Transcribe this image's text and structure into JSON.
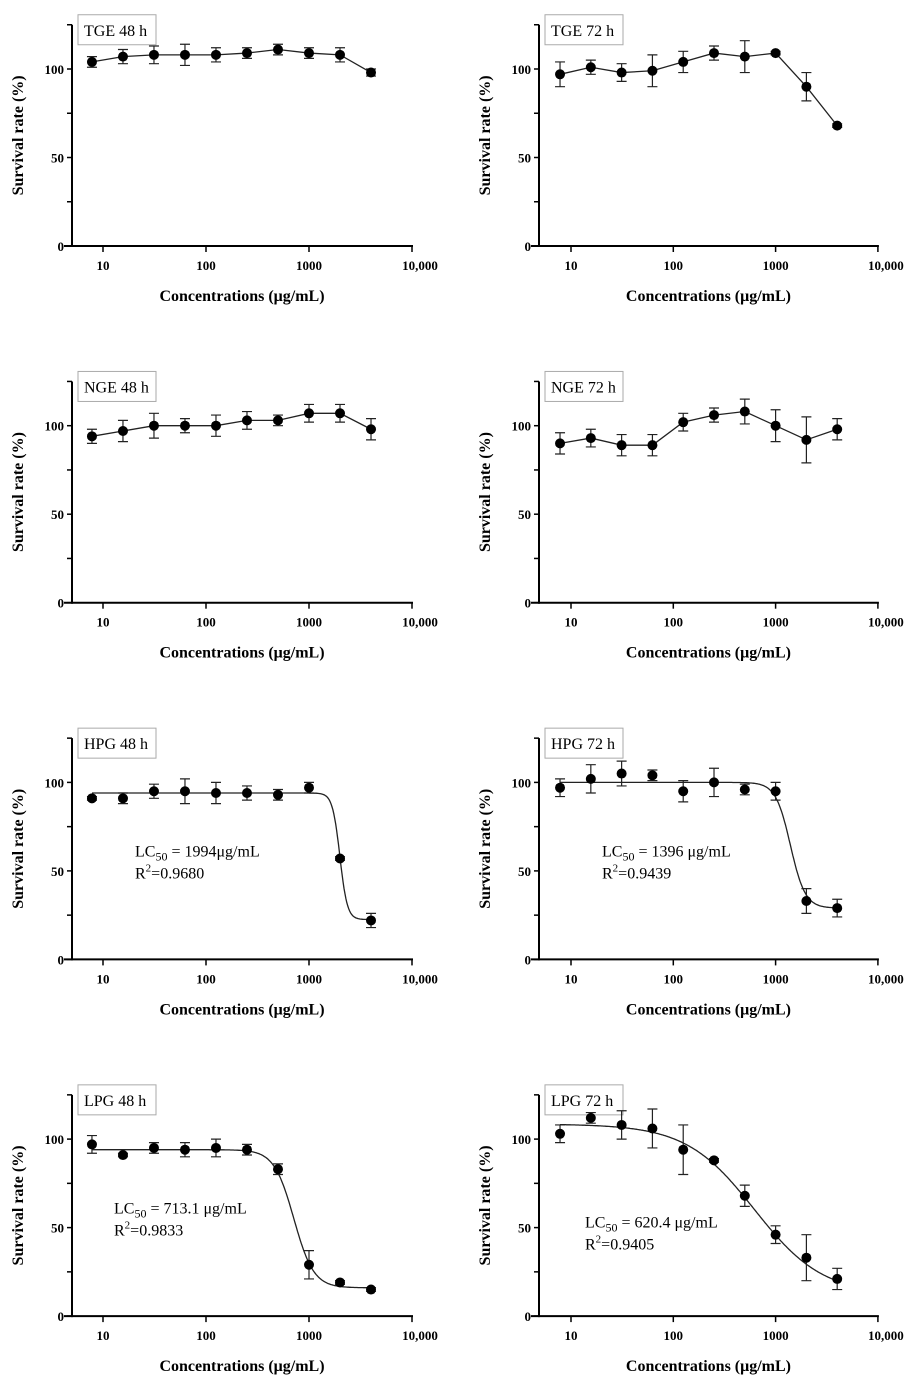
{
  "chart_data": [
    {
      "type": "line",
      "title": "TGE 48 h",
      "x": [
        7.8125,
        15.625,
        31.25,
        62.5,
        125,
        250,
        500,
        1000,
        2000,
        4000
      ],
      "values": [
        104,
        107,
        108,
        108,
        108,
        109,
        111,
        109,
        108,
        98
      ],
      "errors": [
        3,
        4,
        5,
        6,
        4,
        3,
        3,
        3,
        4,
        2
      ],
      "fit": null
    },
    {
      "type": "line",
      "title": "TGE 72 h",
      "x": [
        7.8125,
        15.625,
        31.25,
        62.5,
        125,
        250,
        500,
        1000,
        2000,
        4000
      ],
      "values": [
        97,
        101,
        98,
        99,
        104,
        109,
        107,
        109,
        90,
        68
      ],
      "errors": [
        7,
        4,
        5,
        9,
        6,
        4,
        9,
        1,
        8,
        1
      ],
      "fit": null
    },
    {
      "type": "line",
      "title": "NGE 48 h",
      "x": [
        7.8125,
        15.625,
        31.25,
        62.5,
        125,
        250,
        500,
        1000,
        2000,
        4000
      ],
      "values": [
        94,
        97,
        100,
        100,
        100,
        103,
        103,
        107,
        107,
        98
      ],
      "errors": [
        4,
        6,
        7,
        4,
        6,
        5,
        3,
        5,
        5,
        6
      ],
      "fit": null
    },
    {
      "type": "line",
      "title": "NGE 72 h",
      "x": [
        7.8125,
        15.625,
        31.25,
        62.5,
        125,
        250,
        500,
        1000,
        2000,
        4000
      ],
      "values": [
        90,
        93,
        89,
        89,
        102,
        106,
        108,
        100,
        92,
        98
      ],
      "errors": [
        6,
        5,
        6,
        6,
        5,
        4,
        7,
        9,
        13,
        6
      ],
      "fit": null
    },
    {
      "type": "line",
      "title": "HPG 48 h",
      "x": [
        7.8125,
        15.625,
        31.25,
        62.5,
        125,
        250,
        500,
        1000,
        2000,
        4000
      ],
      "values": [
        91,
        91,
        95,
        95,
        94,
        94,
        93,
        97,
        57,
        22
      ],
      "errors": [
        1,
        3,
        4,
        7,
        6,
        4,
        3,
        3,
        1,
        4
      ],
      "fit": {
        "top": 94,
        "bottom": 22.5,
        "lc50": 1994,
        "hill": 12
      },
      "annotation": {
        "lc50": "LC",
        "sub": "50",
        "lc50_value": " = 1994μg/mL",
        "r2": "R",
        "sup": "2",
        "r2_value": "=0.9680"
      }
    },
    {
      "type": "line",
      "title": "HPG 72 h",
      "x": [
        7.8125,
        15.625,
        31.25,
        62.5,
        125,
        250,
        500,
        1000,
        2000,
        4000
      ],
      "values": [
        97,
        102,
        105,
        104,
        95,
        100,
        96,
        95,
        33,
        29
      ],
      "errors": [
        5,
        8,
        7,
        3,
        6,
        8,
        3,
        5,
        7,
        5
      ],
      "fit": {
        "top": 100,
        "bottom": 29,
        "lc50": 1396,
        "hill": 6
      },
      "annotation": {
        "lc50": "LC",
        "sub": "50",
        "lc50_value": " = 1396 μg/mL",
        "r2": "R",
        "sup": "2",
        "r2_value": "=0.9439"
      }
    },
    {
      "type": "line",
      "title": "LPG 48 h",
      "x": [
        7.8125,
        15.625,
        31.25,
        62.5,
        125,
        250,
        500,
        1000,
        2000,
        4000
      ],
      "values": [
        97,
        91,
        95,
        94,
        95,
        94,
        83,
        29,
        19,
        15
      ],
      "errors": [
        5,
        1,
        3,
        4,
        5,
        3,
        3,
        8,
        1,
        1
      ],
      "fit": {
        "top": 94,
        "bottom": 16,
        "lc50": 713.1,
        "hill": 4.5
      },
      "annotation": {
        "lc50": "LC",
        "sub": "50",
        "lc50_value": " = 713.1 μg/mL",
        "r2": "R",
        "sup": "2",
        "r2_value": "=0.9833"
      }
    },
    {
      "type": "line",
      "title": "LPG 72 h",
      "x": [
        7.8125,
        15.625,
        31.25,
        62.5,
        125,
        250,
        500,
        1000,
        2000,
        4000
      ],
      "values": [
        103,
        112,
        108,
        106,
        94,
        88,
        68,
        46,
        33,
        21
      ],
      "errors": [
        5,
        3,
        8,
        11,
        14,
        1,
        6,
        5,
        13,
        6
      ],
      "fit": {
        "top": 108.5,
        "bottom": 12,
        "lc50": 620.4,
        "hill": 1.3
      },
      "annotation": {
        "lc50": "LC",
        "sub": "50",
        "lc50_value": " = 620.4 μg/mL",
        "r2": "R",
        "sup": "2",
        "r2_value": "=0.9405"
      }
    }
  ],
  "axes": {
    "xlabel": "Concentrations (μg/mL)",
    "ylabel": "Survival rate (%)",
    "xticks": [
      "10",
      "100",
      "1000",
      "10,000"
    ],
    "yticks": [
      "0",
      "50",
      "100"
    ],
    "ylim": [
      0,
      125
    ],
    "xscale": "log"
  }
}
